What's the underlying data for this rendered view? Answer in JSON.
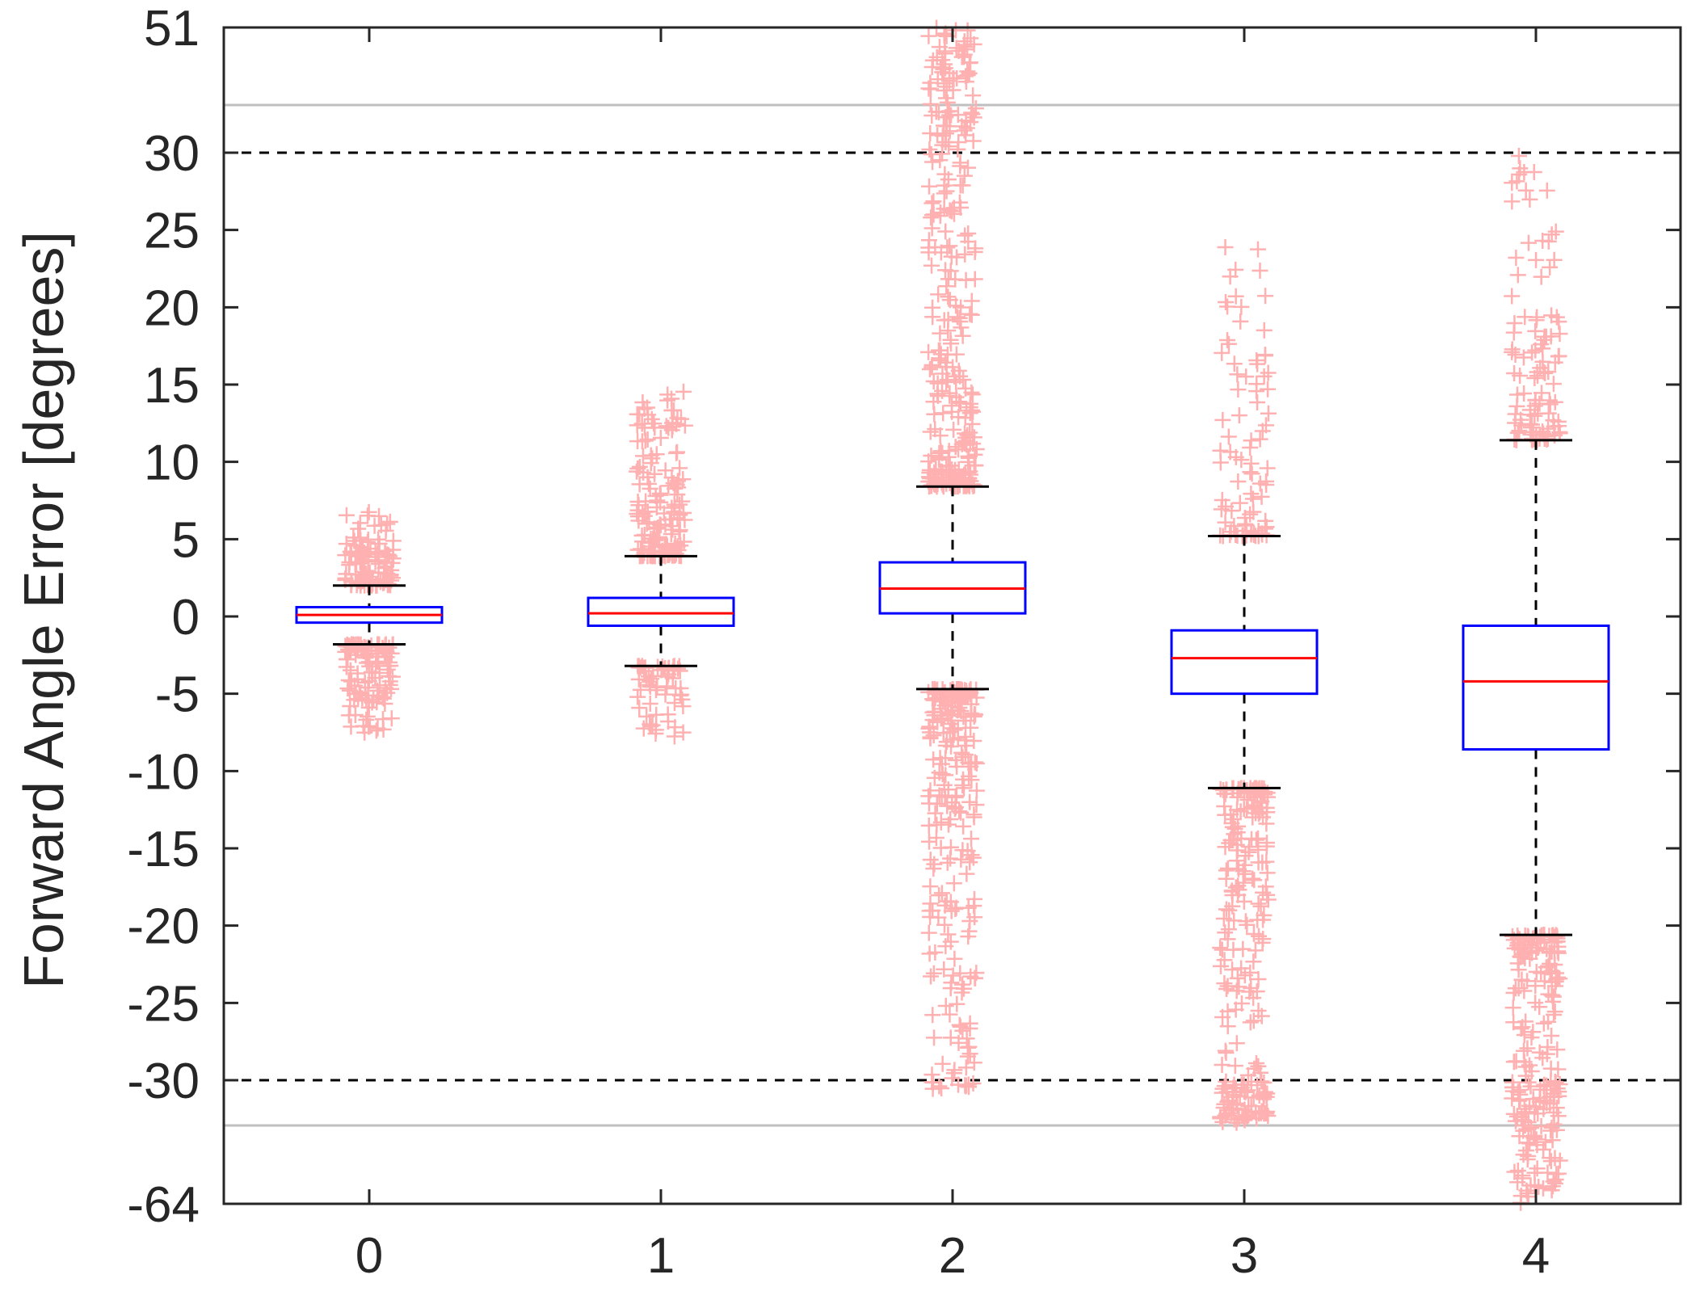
{
  "chart_data": {
    "type": "box",
    "xlabel": "",
    "ylabel": "Forward Angle Error [degrees]",
    "categories": [
      "0",
      "1",
      "2",
      "3",
      "4"
    ],
    "y_tick_labels": [
      "-64",
      "-30",
      "-25",
      "-20",
      "-15",
      "-10",
      "-5",
      "0",
      "5",
      "10",
      "15",
      "20",
      "25",
      "30",
      "51"
    ],
    "y_axis_note": "linear from -30 to 30; compressed breaks beyond ±30 up to 51 and down to -64",
    "reference_lines": [
      {
        "y": 30,
        "style": "dashed",
        "color": "#000000"
      },
      {
        "y": -30,
        "style": "dashed",
        "color": "#000000"
      }
    ],
    "boxes": [
      {
        "category": "0",
        "whisker_low": -1.8,
        "q1": -0.4,
        "median": 0.1,
        "q3": 0.6,
        "whisker_high": 2.0
      },
      {
        "category": "1",
        "whisker_low": -3.2,
        "q1": -0.6,
        "median": 0.2,
        "q3": 1.2,
        "whisker_high": 3.9
      },
      {
        "category": "2",
        "whisker_low": -4.7,
        "q1": 0.2,
        "median": 1.8,
        "q3": 3.5,
        "whisker_high": 8.4
      },
      {
        "category": "3",
        "whisker_low": -11.1,
        "q1": -5.0,
        "median": -2.7,
        "q3": -0.9,
        "whisker_high": 5.2
      },
      {
        "category": "4",
        "whisker_low": -20.6,
        "q1": -8.6,
        "median": -4.2,
        "q3": -0.6,
        "whisker_high": 11.4
      }
    ],
    "outlier_ranges": [
      {
        "category": "0",
        "upper": [
          2.0,
          6.8
        ],
        "lower": [
          -7.6,
          -1.8
        ]
      },
      {
        "category": "1",
        "upper": [
          3.9,
          14.8
        ],
        "lower": [
          -7.8,
          -3.2
        ]
      },
      {
        "category": "2",
        "upper": [
          8.4,
          51
        ],
        "lower": [
          -33,
          -4.7
        ]
      },
      {
        "category": "3",
        "upper": [
          5.2,
          24.4
        ],
        "lower": [
          -42,
          -11.1
        ]
      },
      {
        "category": "4",
        "upper": [
          11.4,
          29.8
        ],
        "lower": [
          -64,
          -20.6
        ]
      }
    ],
    "colors": {
      "box": "#0000ff",
      "median": "#ff0000",
      "whisker": "#000000",
      "outlier": "#ffb0b0",
      "break_line": "#bfbfbf"
    },
    "grid": false
  }
}
